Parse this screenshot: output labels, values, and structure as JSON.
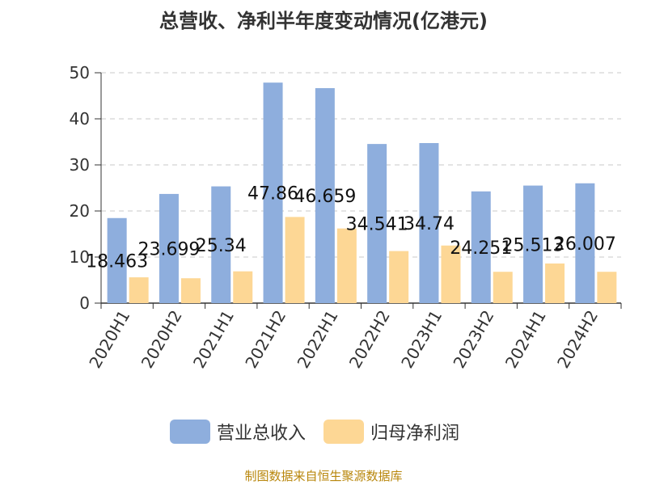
{
  "title": "总营收、净利半年度变动情况(亿港元)",
  "source": "制图数据来自恒生聚源数据库",
  "colors": {
    "revenue": "#8eaedd",
    "profit": "#fdd795"
  },
  "chart_data": {
    "type": "bar",
    "categories": [
      "2020H1",
      "2020H2",
      "2021H1",
      "2021H2",
      "2022H1",
      "2022H2",
      "2023H1",
      "2023H2",
      "2024H1",
      "2024H2"
    ],
    "series": [
      {
        "name": "营业总收入",
        "values": [
          18.463,
          23.699,
          25.34,
          47.86,
          46.659,
          34.541,
          34.74,
          24.251,
          25.513,
          26.007
        ],
        "labels": [
          "18.463",
          "23.699",
          "25.34",
          "47.86",
          "46.659",
          "34.541",
          "34.74",
          "24.251",
          "25.513",
          "26.007"
        ]
      },
      {
        "name": "归母净利润",
        "values": [
          5.6,
          5.4,
          6.9,
          18.7,
          16.2,
          11.3,
          12.5,
          6.8,
          8.6,
          6.8
        ]
      }
    ],
    "yticks": [
      "0",
      "10",
      "20",
      "30",
      "40",
      "50"
    ],
    "ylim": [
      0,
      50
    ],
    "grid": true,
    "legend_position": "bottom"
  }
}
